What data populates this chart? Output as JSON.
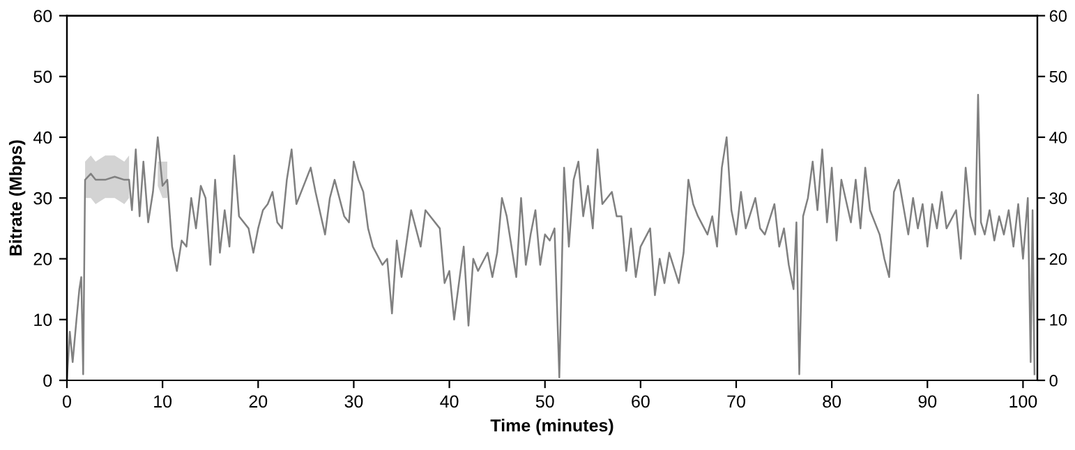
{
  "chart_data": {
    "type": "line",
    "xlabel": "Time (minutes)",
    "ylabel": "Bitrate (Mbps)",
    "xlim": [
      0,
      101.5
    ],
    "xticks": [
      0,
      10,
      20,
      30,
      40,
      50,
      60,
      70,
      80,
      90,
      100
    ],
    "ylim": [
      0,
      60
    ],
    "yticks": [
      0,
      10,
      20,
      30,
      40,
      50,
      60
    ],
    "y2lim": [
      0,
      60
    ],
    "y2ticks": [
      0,
      10,
      20,
      30,
      40,
      50,
      60
    ],
    "grid": false,
    "legend": false,
    "marker": "none",
    "line_style": "solid",
    "series": [
      {
        "color": "#808080",
        "x": [
          0,
          0.3,
          0.6,
          1,
          1.3,
          1.5,
          1.7,
          1.9,
          2.5,
          3,
          4,
          5,
          6,
          6.5,
          6.8,
          7.2,
          7.6,
          8,
          8.5,
          9,
          9.5,
          10,
          10.5,
          11,
          11.5,
          12,
          12.5,
          13,
          13.5,
          14,
          14.5,
          15,
          15.5,
          16,
          16.5,
          17,
          17.5,
          18,
          19,
          19.5,
          20,
          20.5,
          21,
          21.5,
          22,
          22.5,
          23,
          23.5,
          24,
          25,
          25.5,
          26,
          27,
          27.5,
          28,
          29,
          29.5,
          30,
          30.5,
          31,
          31.5,
          32,
          33,
          33.5,
          34,
          34.5,
          35,
          36,
          37,
          37.5,
          38,
          39,
          39.5,
          40,
          40.5,
          41,
          41.5,
          42,
          42.5,
          43,
          44,
          44.5,
          45,
          45.5,
          46,
          47,
          47.5,
          48,
          48.5,
          49,
          49.5,
          50,
          50.5,
          51,
          51.5,
          52,
          52.5,
          53,
          53.5,
          54,
          54.5,
          55,
          55.5,
          56,
          57,
          57.5,
          58,
          58.5,
          59,
          59.5,
          60,
          61,
          61.5,
          62,
          62.5,
          63,
          64,
          64.5,
          65,
          65.5,
          66,
          67,
          67.5,
          68,
          68.5,
          69,
          69.5,
          70,
          70.5,
          71,
          72,
          72.5,
          73,
          74,
          74.5,
          75,
          75.5,
          76,
          76.3,
          76.6,
          77,
          77.5,
          78,
          78.5,
          79,
          79.5,
          80,
          80.5,
          81,
          82,
          82.5,
          83,
          83.5,
          84,
          85,
          85.5,
          86,
          86.5,
          87,
          88,
          88.5,
          89,
          89.5,
          90,
          90.5,
          91,
          91.5,
          92,
          93,
          93.5,
          94,
          94.5,
          95,
          95.3,
          95.6,
          96,
          96.5,
          97,
          97.5,
          98,
          98.5,
          99,
          99.5,
          100,
          100.5,
          100.8,
          101,
          101.2
        ],
        "values": [
          0,
          8,
          3,
          10,
          15,
          17,
          1,
          33,
          34,
          33,
          33,
          33.5,
          33,
          33,
          28,
          38,
          27,
          36,
          26,
          31,
          40,
          32,
          33,
          22,
          18,
          23,
          22,
          30,
          25,
          32,
          30,
          19,
          33,
          21,
          28,
          22,
          37,
          27,
          25,
          21,
          25,
          28,
          29,
          31,
          26,
          25,
          33,
          38,
          29,
          33,
          35,
          31,
          24,
          30,
          33,
          27,
          26,
          36,
          33,
          31,
          25,
          22,
          19,
          20,
          11,
          23,
          17,
          28,
          22,
          28,
          27,
          25,
          16,
          18,
          10,
          16,
          22,
          9,
          20,
          18,
          21,
          17,
          21,
          30,
          27,
          17,
          30,
          19,
          24,
          28,
          19,
          24,
          23,
          25,
          0.5,
          35,
          22,
          33,
          36,
          27,
          32,
          25,
          38,
          29,
          31,
          27,
          27,
          18,
          25,
          17,
          22,
          25,
          14,
          20,
          16,
          21,
          16,
          21,
          33,
          29,
          27,
          24,
          27,
          22,
          35,
          40,
          28,
          24,
          31,
          25,
          30,
          25,
          24,
          29,
          22,
          25,
          19,
          15,
          26,
          1,
          27,
          30,
          36,
          28,
          38,
          26,
          35,
          23,
          33,
          26,
          33,
          25,
          35,
          28,
          24,
          20,
          17,
          31,
          33,
          24,
          30,
          25,
          29,
          22,
          29,
          25,
          31,
          25,
          28,
          20,
          35,
          27,
          24,
          47,
          26,
          24,
          28,
          23,
          27,
          24,
          28,
          22,
          29,
          20,
          30,
          3,
          28,
          1
        ],
        "lower": [
          null,
          null,
          null,
          null,
          null,
          null,
          null,
          30,
          30,
          29,
          30,
          30,
          29,
          30,
          null,
          null,
          null,
          null,
          null,
          null,
          32,
          30,
          30,
          null,
          null,
          null,
          null,
          null,
          null,
          null,
          null,
          null,
          null,
          null,
          null,
          null,
          null,
          null,
          null,
          null,
          null,
          null,
          null,
          null,
          null,
          null,
          null,
          null,
          null,
          null,
          null,
          null,
          null,
          null,
          null,
          null,
          null,
          null,
          null,
          null,
          null,
          null,
          null,
          null,
          null,
          null,
          null,
          null,
          null,
          null,
          null,
          null,
          null,
          null,
          null,
          null,
          null,
          null,
          null,
          null,
          null,
          null,
          null,
          null,
          null,
          null,
          null,
          null,
          null,
          null,
          null,
          null,
          null,
          null,
          null,
          null,
          null,
          null,
          null,
          null,
          null,
          null,
          null,
          null,
          null,
          null,
          null,
          null,
          null,
          null,
          null,
          null,
          null,
          null,
          null,
          null,
          null,
          null,
          null,
          null,
          null,
          null,
          null,
          null,
          null,
          null,
          null,
          null,
          null,
          null,
          null,
          null,
          null,
          null,
          null,
          null,
          null,
          null,
          null,
          null,
          null,
          null,
          null,
          null,
          null,
          null,
          null,
          null,
          null,
          null,
          null,
          null,
          null,
          null,
          null,
          null,
          null,
          null,
          null,
          null,
          null,
          null,
          null,
          null,
          null,
          null,
          null,
          null,
          null,
          null,
          null,
          null,
          null,
          null,
          null,
          null,
          null,
          null,
          null,
          null,
          null,
          null,
          null,
          null,
          null,
          null,
          null,
          null
        ],
        "upper": [
          null,
          null,
          null,
          null,
          null,
          null,
          null,
          36,
          37,
          36,
          37,
          37,
          36,
          37,
          null,
          null,
          null,
          null,
          null,
          null,
          36,
          36,
          36,
          null,
          null,
          null,
          null,
          null,
          null,
          null,
          null,
          null,
          null,
          null,
          null,
          null,
          null,
          null,
          null,
          null,
          null,
          null,
          null,
          null,
          null,
          null,
          null,
          null,
          null,
          null,
          null,
          null,
          null,
          null,
          null,
          null,
          null,
          null,
          null,
          null,
          null,
          null,
          null,
          null,
          null,
          null,
          null,
          null,
          null,
          null,
          null,
          null,
          null,
          null,
          null,
          null,
          null,
          null,
          null,
          null,
          null,
          null,
          null,
          null,
          null,
          null,
          null,
          null,
          null,
          null,
          null,
          null,
          null,
          null,
          null,
          null,
          null,
          null,
          null,
          null,
          null,
          null,
          null,
          null,
          null,
          null,
          null,
          null,
          null,
          null,
          null,
          null,
          null,
          null,
          null,
          null,
          null,
          null,
          null,
          null,
          null,
          null,
          null,
          null,
          null,
          null,
          null,
          null,
          null,
          null,
          null,
          null,
          null,
          null,
          null,
          null,
          null,
          null,
          null,
          null,
          null,
          null,
          null,
          null,
          null,
          null,
          null,
          null,
          null,
          null,
          null,
          null,
          null,
          null,
          null,
          null,
          null,
          null,
          null,
          null,
          null,
          null,
          null,
          null,
          null,
          null,
          null,
          null,
          null,
          null,
          null,
          null,
          null,
          null,
          null,
          null,
          null,
          null,
          null,
          null,
          null,
          null,
          null,
          null,
          null,
          null,
          null,
          null
        ]
      }
    ]
  }
}
